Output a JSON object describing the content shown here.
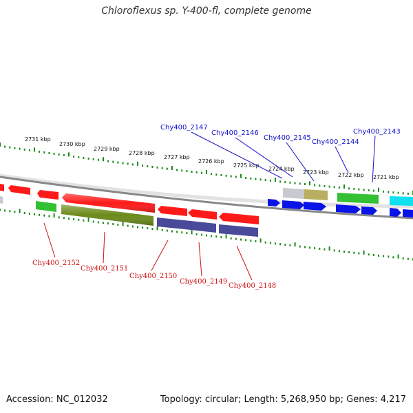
{
  "title": "Chloroflexus sp. Y-400-fl, complete genome",
  "footer": {
    "accession": "Accession: NC_012032",
    "summary": "Topology: circular; Length: 5,268,950 bp; Genes: 4,217"
  },
  "colors": {
    "red": "#ff1a1a",
    "blue": "#0a14e6",
    "green": "#33c033",
    "olive_green": "#6b8a1a",
    "slate": "#4a4a9a",
    "gray": "#c8c8d0",
    "khaki": "#b8b060",
    "cyan": "#10e0f0",
    "tick": "#1a8a1a",
    "backbone": "#888888",
    "top_label": "#1010c8",
    "bottom_label": "#cc1010"
  },
  "scale_labels": [
    "2731 kbp",
    "2730 kbp",
    "2729 kbp",
    "2728 kbp",
    "2727 kbp",
    "2726 kbp",
    "2725 kbp",
    "2724 kbp",
    "2723 kbp",
    "2722 kbp",
    "2721 kbp"
  ],
  "top_labels": [
    "Chy400_2147",
    "Chy400_2146",
    "Chy400_2145",
    "Chy400_2144",
    "Chy400_2143"
  ],
  "bottom_labels": [
    "Chy400_2152",
    "Chy400_2151",
    "Chy400_2150",
    "Chy400_2149",
    "Chy400_2148"
  ]
}
